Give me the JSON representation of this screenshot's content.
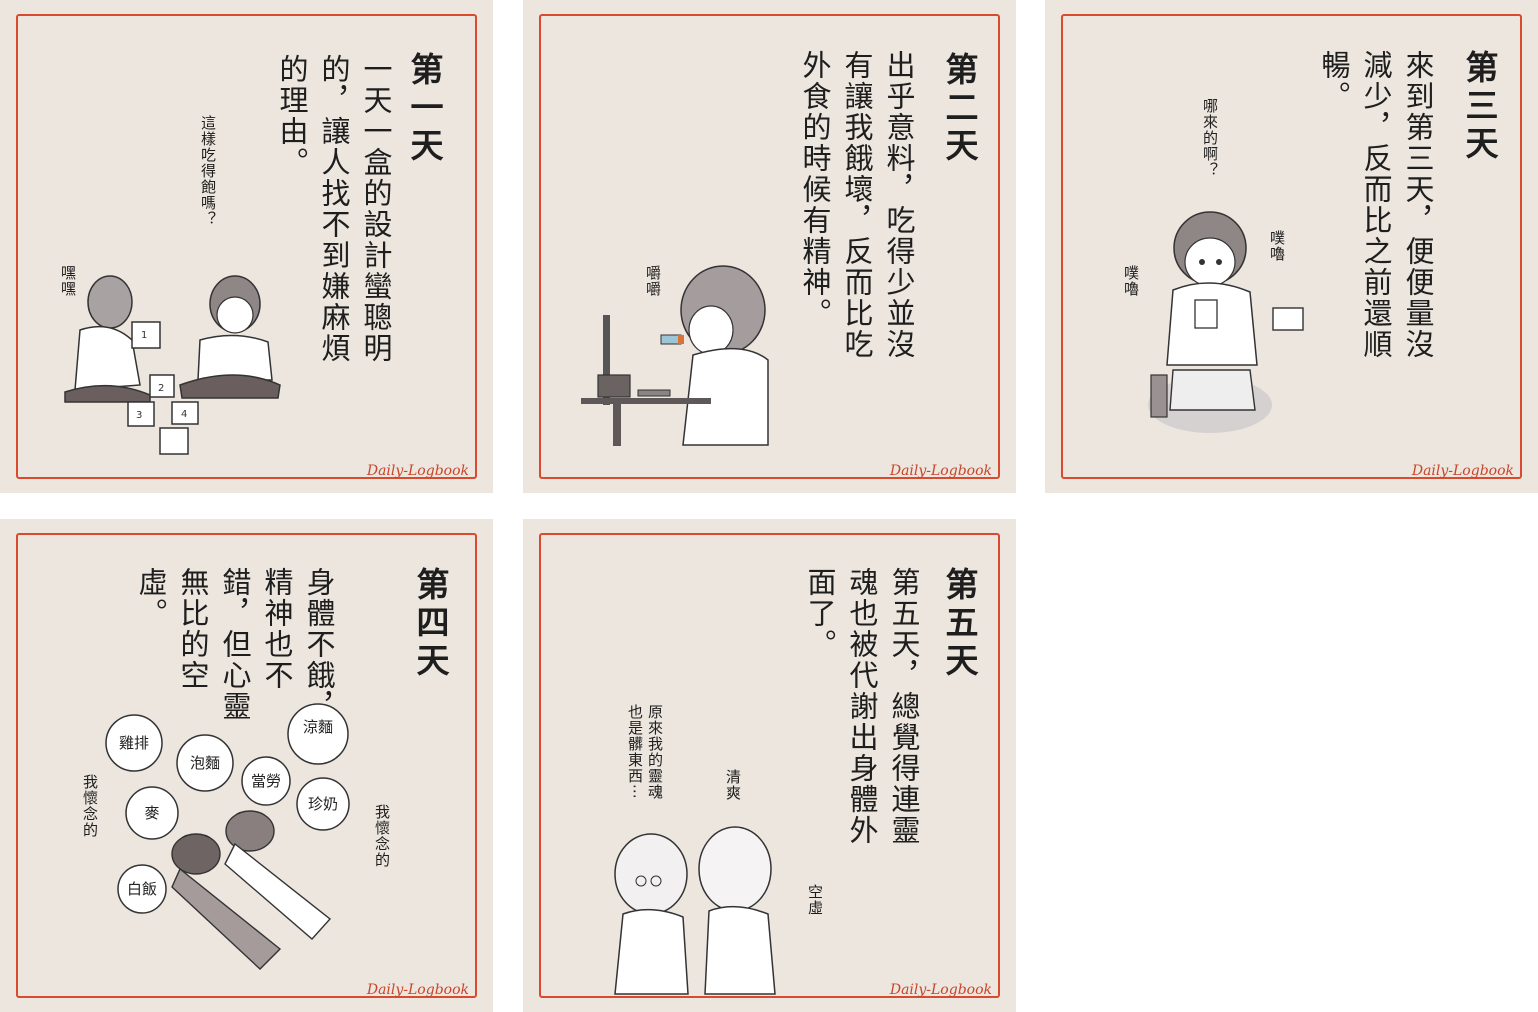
{
  "signature": "Daily-Logbook",
  "panels": [
    {
      "title": "第一天",
      "body": [
        "一天一盒的設計蠻聰明",
        "的，讓人找不到嫌麻煩",
        "的理由。"
      ],
      "speech": [
        "這樣吃得飽嗎？",
        "嘿嘿"
      ],
      "blocks": [
        "1",
        "2",
        "3",
        "4"
      ]
    },
    {
      "title": "第二天",
      "body": [
        "出乎意料，吃得少並沒",
        "有讓我餓壞，反而比吃",
        "外食的時候有精神。"
      ],
      "speech": [
        "嚼嚼"
      ]
    },
    {
      "title": "第三天",
      "body": [
        "來到第三天，便便量沒",
        "減少，反而比之前還順",
        "暢。"
      ],
      "speech": [
        "哪來的啊？",
        "噗嚕",
        "噗嚕"
      ]
    },
    {
      "title": "第四天",
      "body": [
        "身體不餓，",
        "精神也不",
        "錯，但心靈",
        "無比的空",
        "虛。"
      ],
      "bubbles": [
        "涼麵",
        "珍奶",
        "當勞",
        "泡麵",
        "雞排",
        "麥",
        "白飯"
      ],
      "speech": [
        "我懷念的",
        "我懷念的"
      ]
    },
    {
      "title": "第五天",
      "body": [
        "第五天，總覺得連靈",
        "魂也被代謝出身體外",
        "面了。"
      ],
      "speech": [
        "原來我的靈魂",
        "也是髒東西⋯",
        "清爽",
        "空虛"
      ]
    }
  ]
}
